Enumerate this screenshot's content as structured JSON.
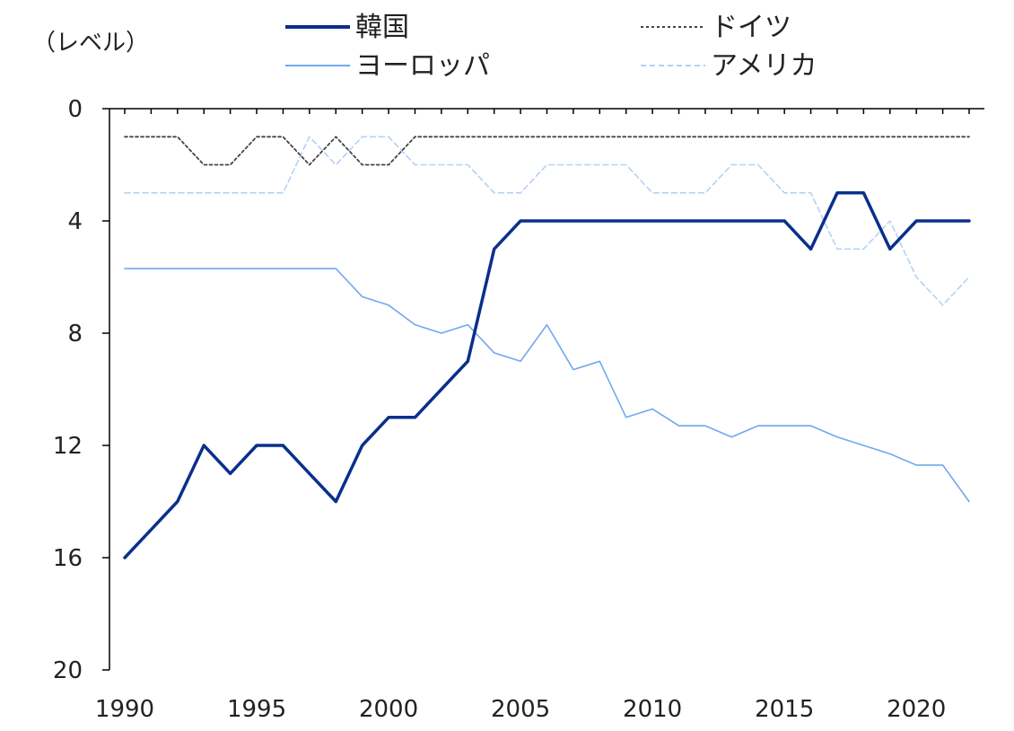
{
  "chart_data": {
    "type": "line",
    "y_unit_label": "（レベル）",
    "y_inverted": true,
    "ylim": [
      0,
      20
    ],
    "y_ticks": [
      0,
      4,
      8,
      12,
      16,
      20
    ],
    "xlim": [
      1990,
      2022
    ],
    "x_ticks": [
      1990,
      1995,
      2000,
      2005,
      2010,
      2015,
      2020
    ],
    "legend_position": "top",
    "x": [
      1990,
      1991,
      1992,
      1993,
      1994,
      1995,
      1996,
      1997,
      1998,
      1999,
      2000,
      2001,
      2002,
      2003,
      2004,
      2005,
      2006,
      2007,
      2008,
      2009,
      2010,
      2011,
      2012,
      2013,
      2014,
      2015,
      2016,
      2017,
      2018,
      2019,
      2020,
      2021,
      2022
    ],
    "series": [
      {
        "name": "韓国",
        "color": "#0a2f8c",
        "style": "solid-thick",
        "values": [
          16,
          15,
          14,
          12,
          13,
          12,
          12,
          13,
          14,
          12,
          11,
          11,
          10,
          9,
          5,
          4,
          4,
          4,
          4,
          4,
          4,
          4,
          4,
          4,
          4,
          4,
          5,
          3,
          3,
          5,
          4,
          4,
          4
        ]
      },
      {
        "name": "ドイツ",
        "color": "#444444",
        "style": "dotted",
        "values": [
          1,
          1,
          1,
          2,
          2,
          1,
          1,
          2,
          1,
          2,
          2,
          1,
          1,
          1,
          1,
          1,
          1,
          1,
          1,
          1,
          1,
          1,
          1,
          1,
          1,
          1,
          1,
          1,
          1,
          1,
          1,
          1,
          1
        ]
      },
      {
        "name": "ヨーロッパ",
        "color": "#6fa8f0",
        "style": "solid-thin",
        "values": [
          5.7,
          5.7,
          5.7,
          5.7,
          5.7,
          5.7,
          5.7,
          5.7,
          5.7,
          6.7,
          7,
          7.7,
          8,
          7.7,
          8.7,
          9,
          7.7,
          9.3,
          9,
          11,
          10.7,
          11.3,
          11.3,
          11.7,
          11.3,
          11.3,
          11.3,
          11.7,
          12,
          12.3,
          12.7,
          12.7,
          14
        ]
      },
      {
        "name": "アメリカ",
        "color": "#b5d1f5",
        "style": "dashed",
        "values": [
          3,
          3,
          3,
          3,
          3,
          3,
          3,
          1,
          2,
          1,
          1,
          2,
          2,
          2,
          3,
          3,
          2,
          2,
          2,
          2,
          3,
          3,
          3,
          2,
          2,
          3,
          3,
          5,
          5,
          4,
          6,
          7,
          6
        ]
      }
    ]
  }
}
